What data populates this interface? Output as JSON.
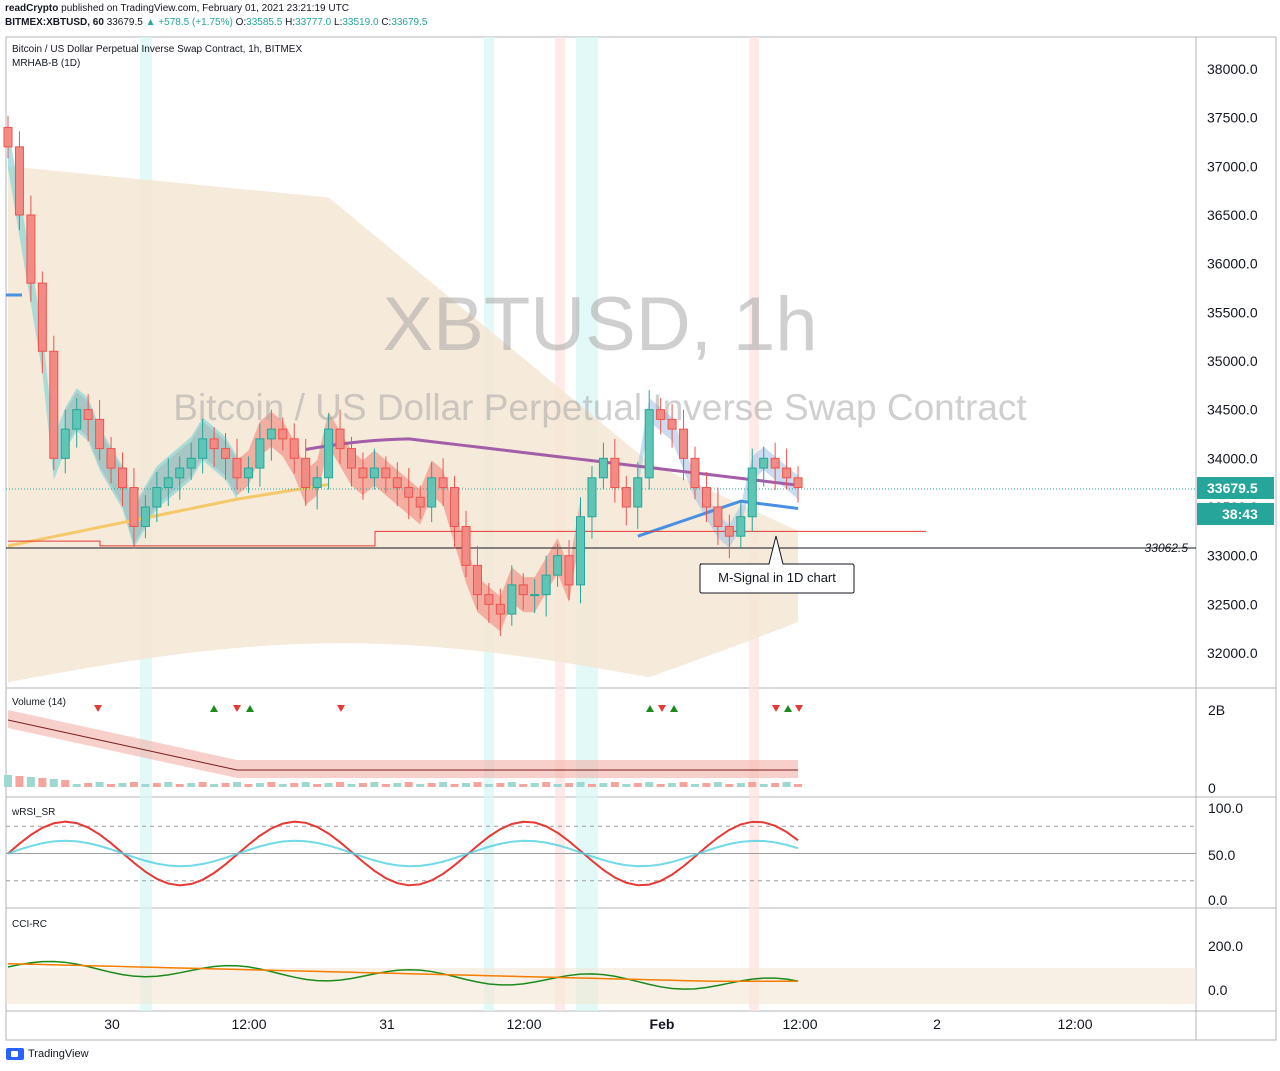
{
  "header": {
    "publisher": "readCrypto",
    "published_text": "published on TradingView.com, February 01, 2021 23:21:19 UTC",
    "symbol_line_prefix": "BITMEX:XBTUSD, 60",
    "last": "33679.5",
    "change": "▲ +578.5 (+1.75%)",
    "open_label": "O:",
    "open": "33585.5",
    "high_label": "H:",
    "high": "33777.0",
    "low_label": "L:",
    "low": "33519.0",
    "close_label": "C:",
    "close": "33679.5"
  },
  "main_pane": {
    "title": "Bitcoin / US Dollar Perpetual Inverse Swap Contract, 1h, BITMEX",
    "indicator": "MRHAB-B (1D)",
    "watermark_big": "XBTUSD, 1h",
    "watermark_small": "Bitcoin / US Dollar Perpetual Inverse Swap Contract",
    "annotation": "M-Signal in 1D chart",
    "hline_label": "33062.5",
    "price_badge": "33679.5",
    "countdown_badge": "38:43"
  },
  "x_axis_labels": [
    "30",
    "12:00",
    "31",
    "12:00",
    "Feb",
    "12:00",
    "2",
    "12:00"
  ],
  "panes": {
    "volume": {
      "title": "Volume (14)",
      "ticks": [
        "2B",
        "0"
      ]
    },
    "wrsi": {
      "title": "wRSI_SR",
      "ticks": [
        "100.0",
        "50.0",
        "0.0"
      ]
    },
    "cci": {
      "title": "CCI-RC",
      "ticks": [
        "200.0",
        "0.0"
      ]
    }
  },
  "footer": {
    "brand": "TradingView"
  },
  "colors": {
    "up": "#26a69a",
    "down": "#ef5350",
    "up_fill": "#5fc5b5",
    "down_fill": "#f28b83",
    "band": "#f5e6d3",
    "mid_purple": "#a35ea8",
    "signal_blue": "#4a90e2",
    "yellow": "#f5c96a",
    "price_green": "#26a69a"
  },
  "chart_data": {
    "type": "line",
    "symbol": "XBTUSD",
    "timeframe": "1h",
    "y_axis": {
      "ticks": [
        38000,
        37500,
        37000,
        36500,
        36000,
        35500,
        35000,
        34500,
        34000,
        33500,
        33000,
        32500,
        32000
      ]
    },
    "horizontal_line": 33062.5,
    "last_price": 33679.5,
    "candles_close_approx": [
      37200,
      36500,
      35800,
      35100,
      34000,
      34300,
      34500,
      34400,
      34100,
      33900,
      33700,
      33300,
      33500,
      33700,
      33800,
      33900,
      34000,
      34200,
      34100,
      34000,
      33800,
      33900,
      34200,
      34300,
      34200,
      34000,
      33700,
      33800,
      34300,
      34100,
      33900,
      33800,
      33900,
      33800,
      33700,
      33600,
      33500,
      33800,
      33700,
      33300,
      32900,
      32600,
      32500,
      32400,
      32700,
      32600,
      32600,
      32800,
      33000,
      32700,
      33400,
      33800,
      34000,
      33700,
      33500,
      33800,
      34500,
      34400,
      34300,
      34000,
      33700,
      33500,
      33300,
      33200,
      33400,
      33900,
      34000,
      33900,
      33800,
      33700
    ]
  }
}
